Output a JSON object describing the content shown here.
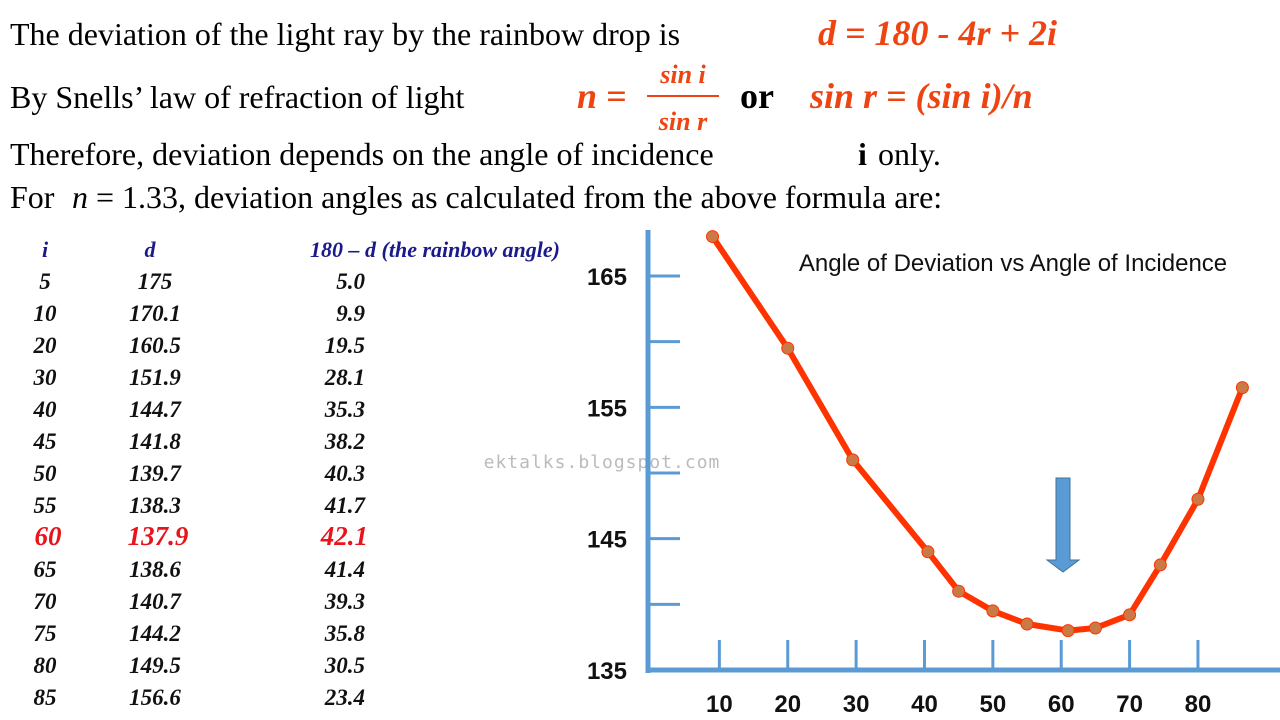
{
  "text": {
    "line1": {
      "text": "The deviation of the light ray by the rainbow drop is",
      "formula": "d = 180 - 4r + 2i"
    },
    "line2": {
      "text": "By Snells’ law of refraction of light",
      "lhs": "n =",
      "numerator": "sin i",
      "denominator": "sin r",
      "or": "or",
      "formula": "sin r = (sin i)/n"
    },
    "line3": {
      "text": "Therefore,  deviation depends on the angle of incidence",
      "symbol": "i",
      "tail": "only."
    },
    "line4": {
      "lead": "For",
      "symbol": "n",
      "text": "= 1.33, deviation angles as calculated from the above formula are:"
    }
  },
  "table": {
    "headers": [
      "i",
      "d",
      "180 – d  (the rainbow angle)"
    ],
    "highlight_row": 8,
    "rows": [
      [
        "5",
        "175",
        "5.0"
      ],
      [
        "10",
        "170.1",
        "9.9"
      ],
      [
        "20",
        "160.5",
        "19.5"
      ],
      [
        "30",
        "151.9",
        "28.1"
      ],
      [
        "40",
        "144.7",
        "35.3"
      ],
      [
        "45",
        "141.8",
        "38.2"
      ],
      [
        "50",
        "139.7",
        "40.3"
      ],
      [
        "55",
        "138.3",
        "41.7"
      ],
      [
        "60",
        "137.9",
        "42.1"
      ],
      [
        "65",
        "138.6",
        "41.4"
      ],
      [
        "70",
        "140.7",
        "39.3"
      ],
      [
        "75",
        "144.2",
        "35.8"
      ],
      [
        "80",
        "149.5",
        "30.5"
      ],
      [
        "85",
        "156.6",
        "23.4"
      ]
    ]
  },
  "watermark": "ektalks.blogspot.com",
  "chart_data": {
    "type": "line",
    "title": "Angle of Deviation vs Angle of Incidence",
    "x": [
      9,
      20,
      29.5,
      40.5,
      45,
      50,
      55,
      61,
      65,
      70,
      74.5,
      80,
      86.5
    ],
    "series": [
      {
        "color": "#ff3300",
        "marker_color": "#cc7a45",
        "values": [
          168,
          159.5,
          151,
          144,
          141,
          139.5,
          138.5,
          138,
          138.2,
          139.2,
          143,
          148,
          156.5
        ]
      }
    ],
    "xlim": [
      0,
      92
    ],
    "ylim": [
      135,
      168.5
    ],
    "xticks": [
      10,
      20,
      30,
      40,
      50,
      60,
      70,
      80
    ],
    "yticks": [
      135,
      145,
      155,
      165
    ],
    "yminor_ticks": [
      140,
      150,
      160
    ],
    "axis_color": "#5b9bd5"
  }
}
